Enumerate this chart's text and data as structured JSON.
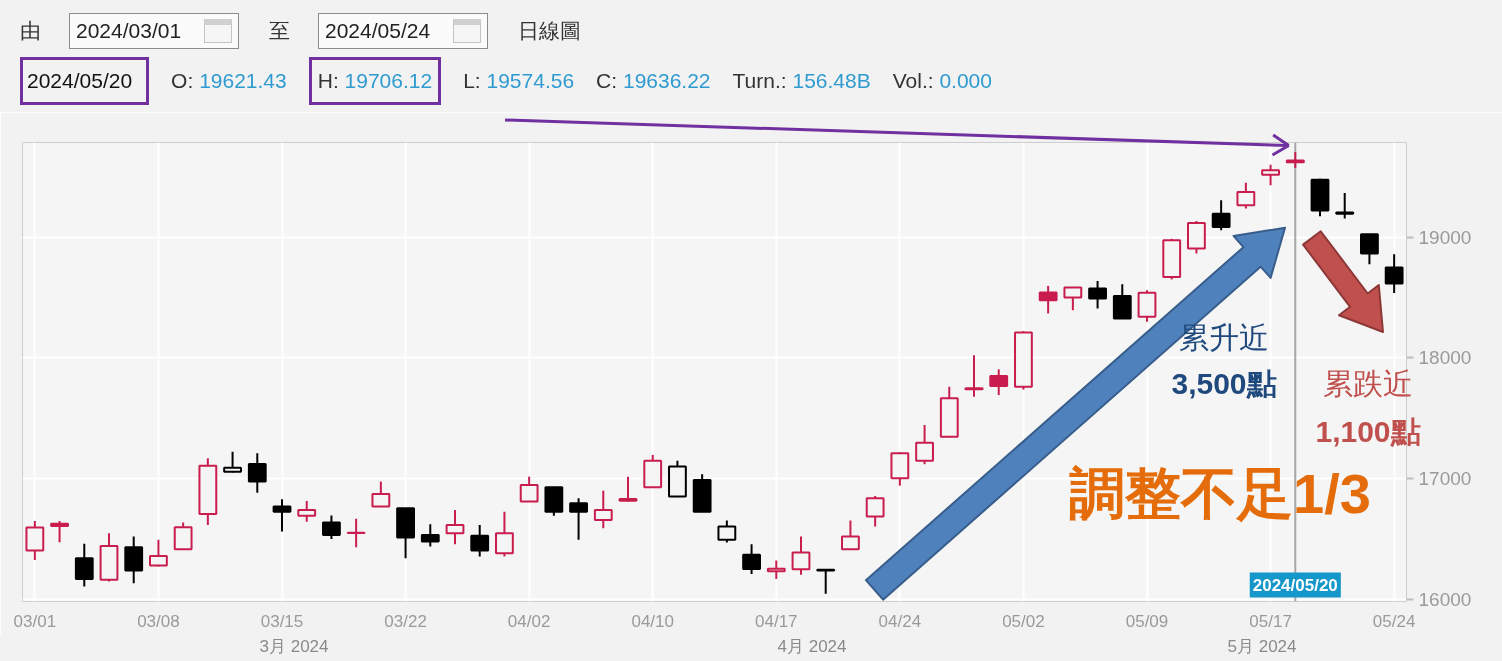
{
  "chart_data": {
    "type": "candlestick",
    "title": "由 2024/03/01 至 2024/05/24 日線圖",
    "subtitle": "2024/05/20 O: 19621.43 H: 19706.12 L: 19574.56 C: 19636.22 Turn.: 156.48B Vol.: 0.000",
    "annotations": [
      "3月 2024",
      "4月 2024",
      "5月 2024",
      "累升近\n3,500點",
      "累跌近\n1,100點",
      "調整不足1/3"
    ],
    "categories": [
      "03/01",
      null,
      null,
      null,
      null,
      "03/08",
      null,
      null,
      null,
      null,
      "03/15",
      null,
      null,
      null,
      null,
      "03/22",
      null,
      null,
      null,
      null,
      "04/02",
      null,
      null,
      null,
      null,
      "04/10",
      null,
      null,
      null,
      null,
      "04/17",
      null,
      null,
      null,
      null,
      "04/24",
      null,
      null,
      null,
      null,
      "05/02",
      null,
      null,
      null,
      null,
      "05/09",
      null,
      null,
      null,
      null,
      "05/17",
      "2024/05/20",
      null,
      null,
      null,
      "05/24"
    ],
    "ohlc": [
      [
        16402,
        16648,
        16325,
        16593
      ],
      [
        16625,
        16648,
        16472,
        16605
      ],
      [
        16339,
        16458,
        16104,
        16166
      ],
      [
        16160,
        16546,
        16146,
        16440
      ],
      [
        16430,
        16518,
        16132,
        16237
      ],
      [
        16278,
        16491,
        16270,
        16358
      ],
      [
        16414,
        16634,
        16410,
        16596
      ],
      [
        16706,
        17167,
        16615,
        17106
      ],
      [
        17056,
        17222,
        17050,
        17089
      ],
      [
        17120,
        17209,
        16882,
        16974
      ],
      [
        16767,
        16828,
        16560,
        16725
      ],
      [
        16690,
        16814,
        16642,
        16739
      ],
      [
        16634,
        16692,
        16499,
        16532
      ],
      [
        16548,
        16665,
        16430,
        16550
      ],
      [
        16767,
        16974,
        16765,
        16872
      ],
      [
        16753,
        16755,
        16339,
        16510
      ],
      [
        16532,
        16621,
        16435,
        16477
      ],
      [
        16546,
        16739,
        16455,
        16615
      ],
      [
        16526,
        16615,
        16353,
        16402
      ],
      [
        16381,
        16725,
        16353,
        16546
      ],
      [
        16808,
        17015,
        16805,
        16946
      ],
      [
        16927,
        16927,
        16690,
        16725
      ],
      [
        16795,
        16836,
        16491,
        16724
      ],
      [
        16656,
        16899,
        16588,
        16739
      ],
      [
        16815,
        17015,
        16810,
        16830
      ],
      [
        16927,
        17195,
        16925,
        17147
      ],
      [
        16850,
        17147,
        16849,
        17100
      ],
      [
        16988,
        17035,
        16722,
        16725
      ],
      [
        16491,
        16651,
        16469,
        16601
      ],
      [
        16367,
        16455,
        16207,
        16249
      ],
      [
        16230,
        16320,
        16166,
        16252
      ],
      [
        16248,
        16518,
        16201,
        16386
      ],
      [
        16243,
        16245,
        16044,
        16236
      ],
      [
        16414,
        16651,
        16412,
        16518
      ],
      [
        16684,
        16855,
        16601,
        16836
      ],
      [
        17002,
        17217,
        16940,
        17209
      ],
      [
        17147,
        17443,
        17118,
        17296
      ],
      [
        17346,
        17760,
        17340,
        17664
      ],
      [
        17740,
        18022,
        17677,
        17747
      ],
      [
        17849,
        17904,
        17691,
        17766
      ],
      [
        17760,
        18221,
        17737,
        18210
      ],
      [
        18541,
        18596,
        18368,
        18478
      ],
      [
        18500,
        18588,
        18395,
        18583
      ],
      [
        18575,
        18637,
        18409,
        18492
      ],
      [
        18513,
        18610,
        18326,
        18326
      ],
      [
        18340,
        18560,
        18300,
        18540
      ],
      [
        18670,
        18988,
        18650,
        18974
      ],
      [
        18906,
        19134,
        18864,
        19117
      ],
      [
        19195,
        19306,
        19057,
        19084
      ],
      [
        19264,
        19452,
        19237,
        19374
      ],
      [
        19518,
        19601,
        19430,
        19554
      ],
      [
        19621.43,
        19706.12,
        19574.56,
        19636.22
      ],
      [
        19477,
        19485,
        19173,
        19221
      ],
      [
        19205,
        19366,
        19155,
        19195
      ],
      [
        19024,
        19024,
        18776,
        18864
      ],
      [
        18748,
        18858,
        18538,
        18616
      ]
    ],
    "colors": [
      "#c91d4e",
      "#c91d4e",
      "#000000",
      "#c91d4e",
      "#000000",
      "#c91d4e",
      "#c91d4e",
      "#c91d4e",
      "#000000",
      "#000000",
      "#000000",
      "#c91d4e",
      "#000000",
      "#c91d4e",
      "#c91d4e",
      "#000000",
      "#000000",
      "#c91d4e",
      "#000000",
      "#c91d4e",
      "#c91d4e",
      "#000000",
      "#000000",
      "#c91d4e",
      "#c91d4e",
      "#c91d4e",
      "#000000",
      "#000000",
      "#000000",
      "#000000",
      "#c91d4e",
      "#c91d4e",
      "#000000",
      "#c91d4e",
      "#c91d4e",
      "#c91d4e",
      "#c91d4e",
      "#c91d4e",
      "#c91d4e",
      "#c91d4e",
      "#c91d4e",
      "#c91d4e",
      "#c91d4e",
      "#000000",
      "#000000",
      "#c91d4e",
      "#c91d4e",
      "#c91d4e",
      "#000000",
      "#c91d4e",
      "#c91d4e",
      "#c91d4e",
      "#000000",
      "#000000",
      "#000000",
      "#000000"
    ],
    "ylim": [
      15980,
      19785
    ],
    "yticks": [
      16000,
      17000,
      18000,
      19000
    ],
    "grid": true,
    "ref_lines": [
      {
        "axis": "x",
        "value": "2024/05/20",
        "color": "#a6a6a6"
      }
    ]
  }
}
